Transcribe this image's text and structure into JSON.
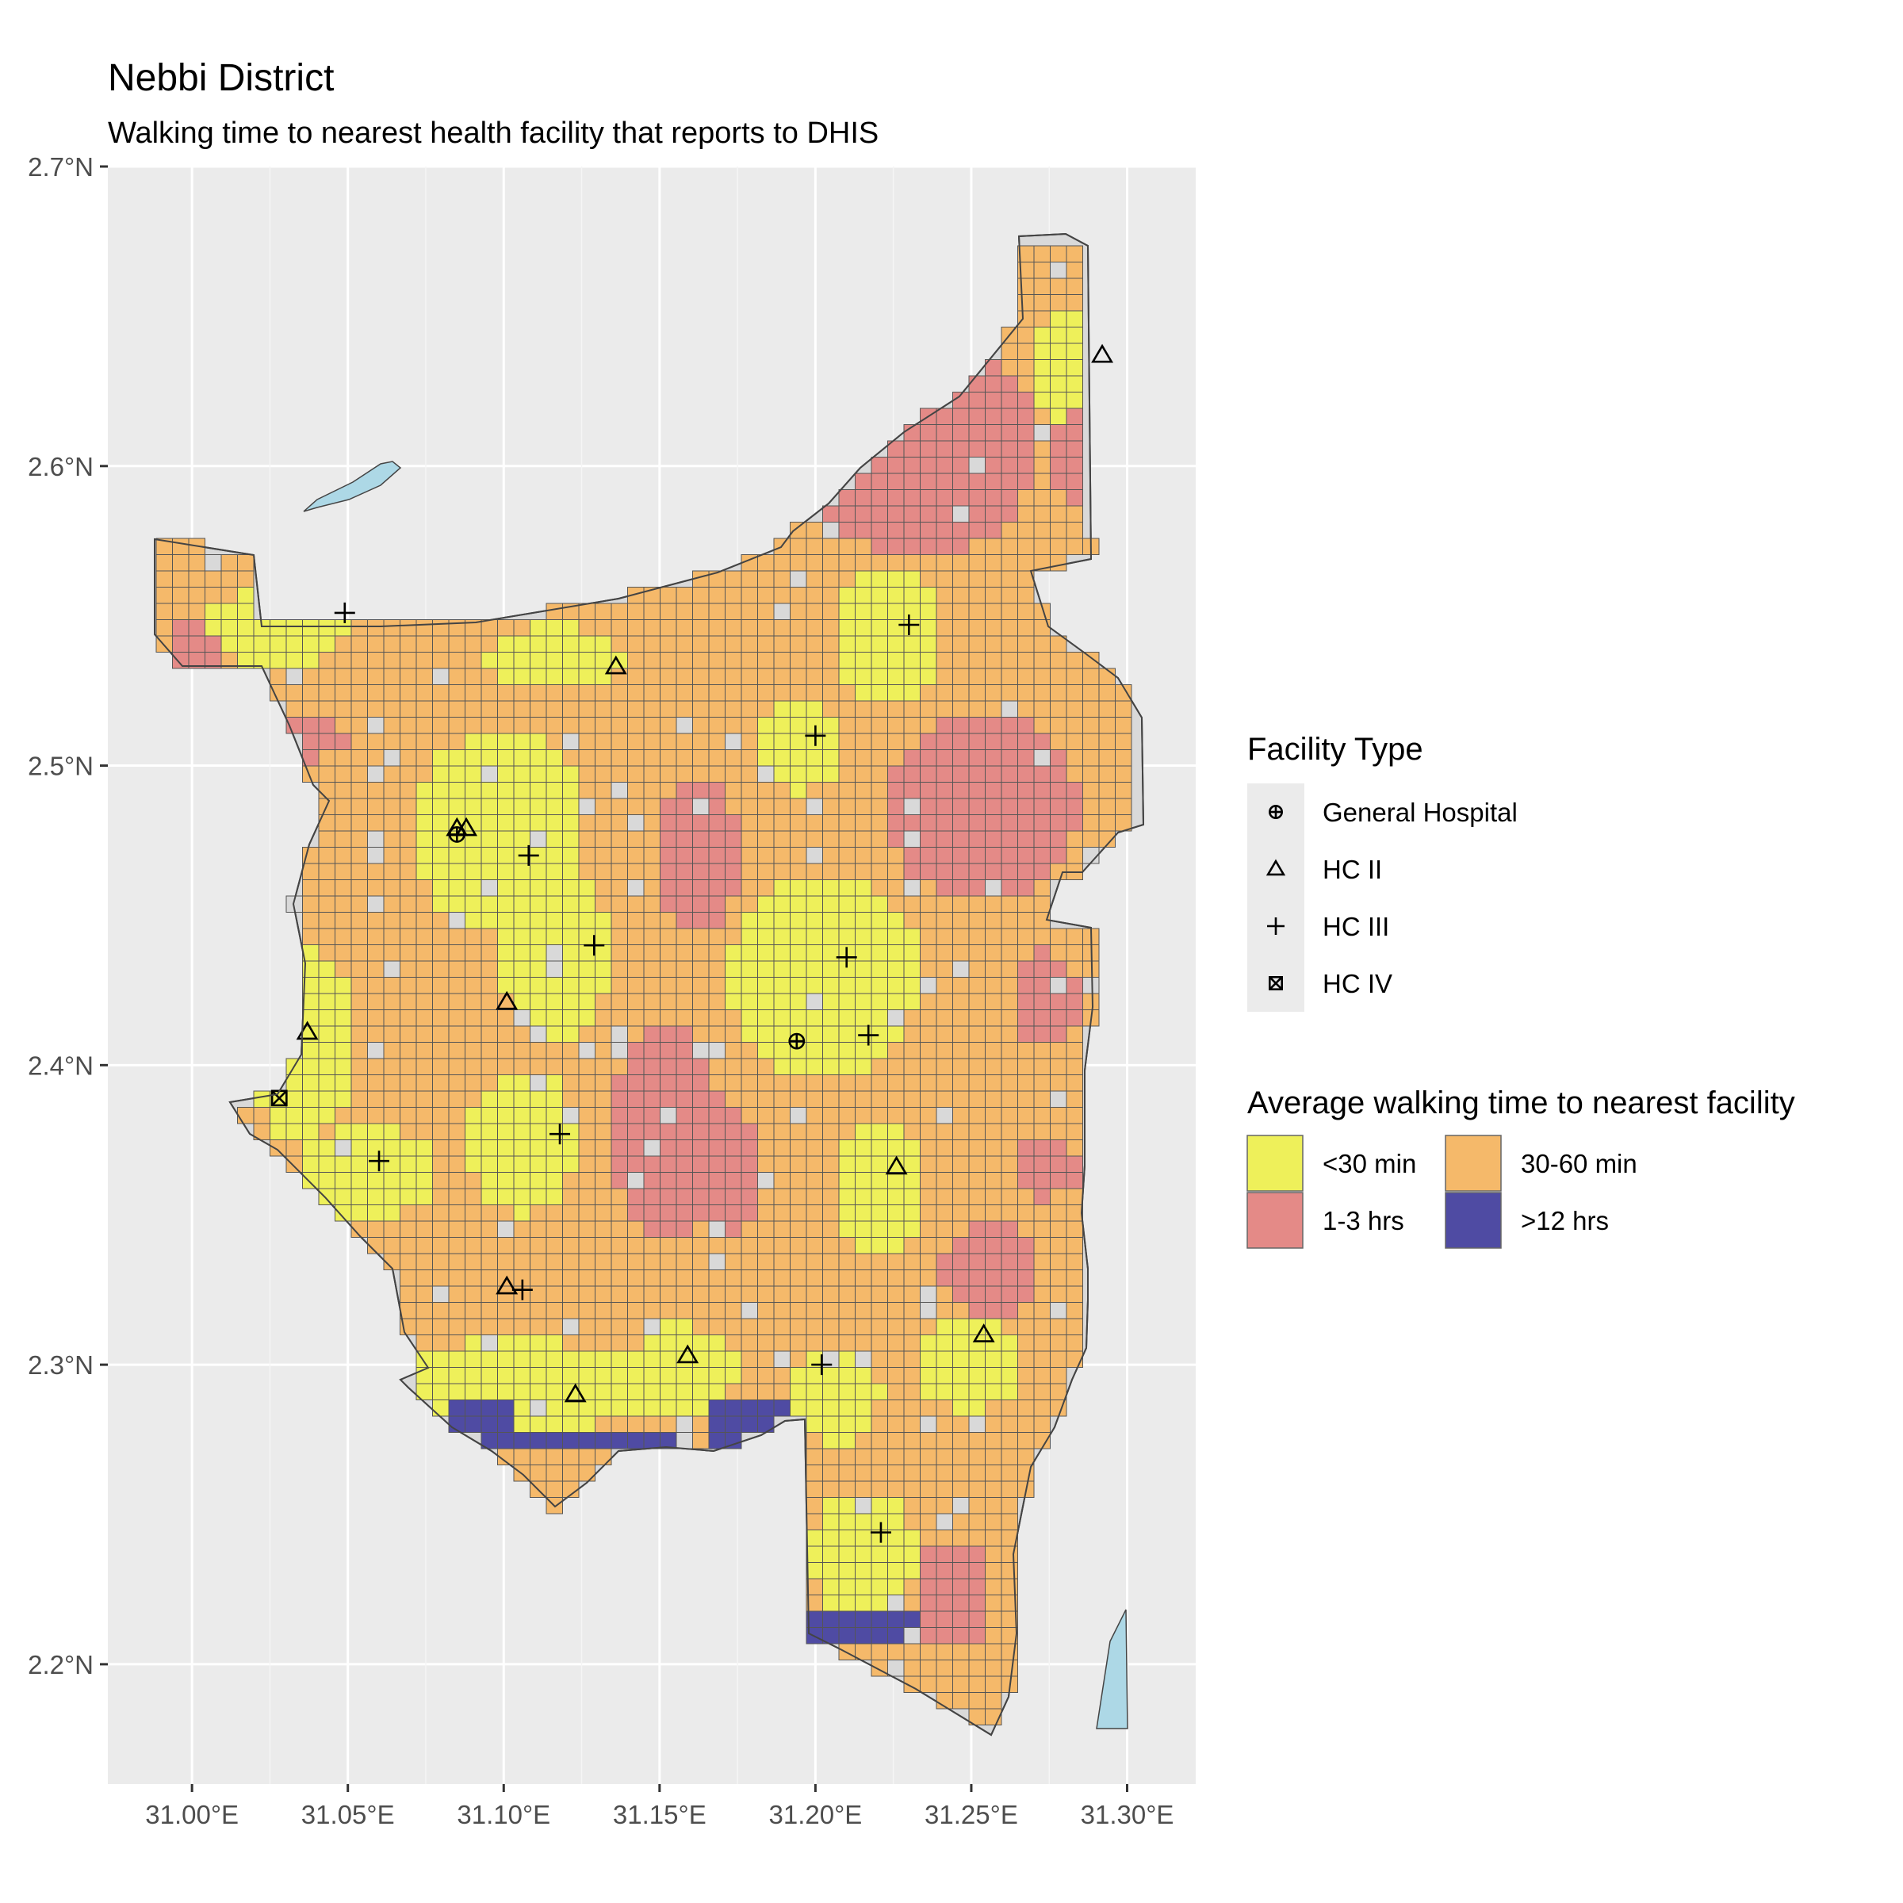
{
  "title": "Nebbi District",
  "subtitle": "Walking time to nearest health facility that reports to DHIS",
  "colors": {
    "panel": "#ebebeb",
    "grid": "#ffffff",
    "under_30": "#eef05a",
    "30_60": "#f5b96a",
    "1_3": "#e48a87",
    "over_12": "#4f4ba3",
    "nodata": "#d9d9d9",
    "water": "#add8e6",
    "cell_border": "#555555"
  },
  "axes": {
    "x_ticks": [
      {
        "value": 31.0,
        "label": "31.00°E"
      },
      {
        "value": 31.05,
        "label": "31.05°E"
      },
      {
        "value": 31.1,
        "label": "31.10°E"
      },
      {
        "value": 31.15,
        "label": "31.15°E"
      },
      {
        "value": 31.2,
        "label": "31.20°E"
      },
      {
        "value": 31.25,
        "label": "31.25°E"
      },
      {
        "value": 31.3,
        "label": "31.30°E"
      }
    ],
    "y_ticks": [
      {
        "value": 2.7,
        "label": "2.7°N"
      },
      {
        "value": 2.6,
        "label": "2.6°N"
      },
      {
        "value": 2.5,
        "label": "2.5°N"
      },
      {
        "value": 2.4,
        "label": "2.4°N"
      },
      {
        "value": 2.3,
        "label": "2.3°N"
      },
      {
        "value": 2.2,
        "label": "2.2°N"
      }
    ],
    "xlim": [
      30.973,
      31.322
    ],
    "ylim": [
      2.16,
      2.7
    ]
  },
  "legend_facility": {
    "title": "Facility Type",
    "items": [
      {
        "symbol": "general-hospital",
        "label": "General Hospital"
      },
      {
        "symbol": "hc2",
        "label": "HC II"
      },
      {
        "symbol": "hc3",
        "label": "HC III"
      },
      {
        "symbol": "hc4",
        "label": "HC IV"
      }
    ]
  },
  "legend_walk": {
    "title": "Average walking time to nearest facility",
    "items": [
      {
        "key": "under_30",
        "label": "<30 min"
      },
      {
        "key": "30_60",
        "label": "30-60 min"
      },
      {
        "key": "1_3",
        "label": "1-3 hrs"
      },
      {
        "key": "over_12",
        "label": ">12 hrs"
      }
    ]
  },
  "facilities": [
    {
      "type": "hc2",
      "lon": 31.292,
      "lat": 2.637
    },
    {
      "type": "hc3",
      "lon": 31.049,
      "lat": 2.551
    },
    {
      "type": "hc3",
      "lon": 31.23,
      "lat": 2.547
    },
    {
      "type": "hc2",
      "lon": 31.136,
      "lat": 2.533
    },
    {
      "type": "hc3",
      "lon": 31.2,
      "lat": 2.51
    },
    {
      "type": "general-hospital",
      "lon": 31.085,
      "lat": 2.477
    },
    {
      "type": "hc2",
      "lon": 31.085,
      "lat": 2.479
    },
    {
      "type": "hc2",
      "lon": 31.088,
      "lat": 2.479
    },
    {
      "type": "hc3",
      "lon": 31.108,
      "lat": 2.47
    },
    {
      "type": "hc3",
      "lon": 31.129,
      "lat": 2.44
    },
    {
      "type": "hc3",
      "lon": 31.21,
      "lat": 2.436
    },
    {
      "type": "hc2",
      "lon": 31.101,
      "lat": 2.421
    },
    {
      "type": "hc2",
      "lon": 31.037,
      "lat": 2.411
    },
    {
      "type": "general-hospital",
      "lon": 31.194,
      "lat": 2.408
    },
    {
      "type": "hc3",
      "lon": 31.217,
      "lat": 2.41
    },
    {
      "type": "hc4",
      "lon": 31.028,
      "lat": 2.389
    },
    {
      "type": "hc3",
      "lon": 31.118,
      "lat": 2.377
    },
    {
      "type": "hc3",
      "lon": 31.06,
      "lat": 2.368
    },
    {
      "type": "hc2",
      "lon": 31.226,
      "lat": 2.366
    },
    {
      "type": "hc2",
      "lon": 31.101,
      "lat": 2.326
    },
    {
      "type": "hc3",
      "lon": 31.106,
      "lat": 2.325
    },
    {
      "type": "hc2",
      "lon": 31.254,
      "lat": 2.31
    },
    {
      "type": "hc2",
      "lon": 31.159,
      "lat": 2.303
    },
    {
      "type": "hc3",
      "lon": 31.202,
      "lat": 2.3
    },
    {
      "type": "hc2",
      "lon": 31.123,
      "lat": 2.29
    },
    {
      "type": "hc3",
      "lon": 31.221,
      "lat": 2.244
    }
  ]
}
